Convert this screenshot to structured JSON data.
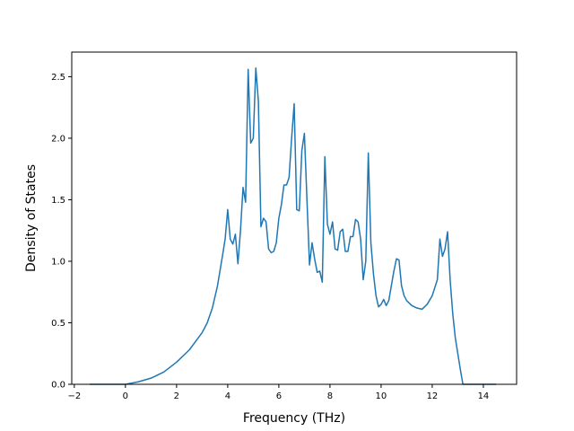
{
  "chart_data": {
    "type": "line",
    "title": "",
    "xlabel": "Frequency (THz)",
    "ylabel": "Density of States",
    "xlim": [
      -2.1,
      15.3
    ],
    "ylim": [
      0.0,
      2.7
    ],
    "xticks": [
      -2,
      0,
      2,
      4,
      6,
      8,
      10,
      12,
      14
    ],
    "xtick_labels": [
      "−2",
      "0",
      "2",
      "4",
      "6",
      "8",
      "10",
      "12",
      "14"
    ],
    "yticks": [
      0.0,
      0.5,
      1.0,
      1.5,
      2.0,
      2.5
    ],
    "ytick_labels": [
      "0.0",
      "0.5",
      "1.0",
      "1.5",
      "2.0",
      "2.5"
    ],
    "grid": false,
    "colors": {
      "line": "#1f77b4"
    },
    "series": [
      {
        "x": [
          -1.4,
          -1.0,
          -0.5,
          0.0,
          0.5,
          1.0,
          1.5,
          2.0,
          2.5,
          3.0,
          3.2,
          3.4,
          3.6,
          3.8,
          3.9,
          4.0,
          4.1,
          4.2,
          4.3,
          4.4,
          4.5,
          4.6,
          4.7,
          4.8,
          4.9,
          5.0,
          5.1,
          5.2,
          5.3,
          5.4,
          5.5,
          5.6,
          5.7,
          5.8,
          5.9,
          6.0,
          6.1,
          6.2,
          6.3,
          6.4,
          6.5,
          6.6,
          6.7,
          6.8,
          6.9,
          7.0,
          7.1,
          7.2,
          7.3,
          7.4,
          7.5,
          7.6,
          7.7,
          7.8,
          7.9,
          8.0,
          8.1,
          8.2,
          8.3,
          8.4,
          8.5,
          8.6,
          8.7,
          8.8,
          8.9,
          9.0,
          9.1,
          9.2,
          9.3,
          9.4,
          9.5,
          9.6,
          9.7,
          9.8,
          9.9,
          10.0,
          10.1,
          10.2,
          10.3,
          10.4,
          10.5,
          10.6,
          10.7,
          10.8,
          10.9,
          11.0,
          11.2,
          11.4,
          11.6,
          11.8,
          12.0,
          12.2,
          12.3,
          12.4,
          12.5,
          12.6,
          12.7,
          12.8,
          12.9,
          13.0,
          13.1,
          13.2,
          13.4,
          13.8,
          14.2,
          14.5
        ],
        "y": [
          0.0,
          0.0,
          0.0,
          0.0,
          0.02,
          0.05,
          0.1,
          0.18,
          0.28,
          0.42,
          0.5,
          0.62,
          0.8,
          1.05,
          1.18,
          1.42,
          1.18,
          1.14,
          1.22,
          0.98,
          1.25,
          1.6,
          1.48,
          2.56,
          1.96,
          2.0,
          2.57,
          2.3,
          1.28,
          1.35,
          1.32,
          1.1,
          1.07,
          1.08,
          1.15,
          1.35,
          1.46,
          1.62,
          1.62,
          1.68,
          2.0,
          2.28,
          1.42,
          1.41,
          1.9,
          2.04,
          1.5,
          0.97,
          1.15,
          1.02,
          0.91,
          0.92,
          0.83,
          1.85,
          1.3,
          1.22,
          1.32,
          1.1,
          1.09,
          1.24,
          1.26,
          1.08,
          1.08,
          1.2,
          1.2,
          1.34,
          1.32,
          1.18,
          0.85,
          1.0,
          1.88,
          1.15,
          0.9,
          0.72,
          0.63,
          0.65,
          0.69,
          0.64,
          0.68,
          0.8,
          0.92,
          1.02,
          1.01,
          0.8,
          0.72,
          0.68,
          0.64,
          0.62,
          0.61,
          0.65,
          0.72,
          0.85,
          1.18,
          1.04,
          1.1,
          1.24,
          0.85,
          0.58,
          0.38,
          0.25,
          0.12,
          0.0,
          0.0,
          0.0,
          0.0,
          0.0
        ]
      }
    ]
  }
}
